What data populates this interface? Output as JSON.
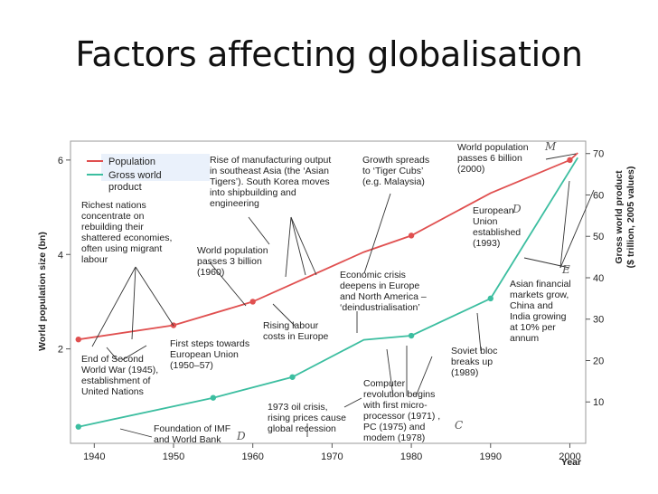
{
  "slide": {
    "title": "Factors affecting globalisation"
  },
  "chart_data": {
    "type": "line",
    "title": "",
    "xlabel": "Year",
    "ylabel_left": "World population size (bn)",
    "ylabel_right": "Gross world product ($ trillion, 2005 values)",
    "xlim": [
      1937,
      2002
    ],
    "ylim_left": [
      0,
      6.4
    ],
    "ylim_right": [
      0,
      73
    ],
    "x_ticks": [
      1940,
      1950,
      1960,
      1970,
      1980,
      1990,
      2000
    ],
    "y_ticks_left": [
      2,
      4,
      6
    ],
    "y_ticks_right": [
      10,
      20,
      30,
      40,
      50,
      60,
      70
    ],
    "series": [
      {
        "name": "Population",
        "axis": "left",
        "color": "#e05050",
        "x": [
          1938,
          1950,
          1960,
          1974,
          1980,
          1990,
          2000,
          2001
        ],
        "y": [
          2.2,
          2.5,
          3.0,
          4.05,
          4.4,
          5.3,
          6.0,
          6.15
        ]
      },
      {
        "name": "Gross world product",
        "axis": "right",
        "color": "#3cbea0",
        "x": [
          1938,
          1955,
          1965,
          1974,
          1980,
          1990,
          2001
        ],
        "y": [
          4,
          11,
          16,
          25,
          26,
          35,
          69
        ]
      }
    ],
    "markers": [
      {
        "series": 0,
        "x": 1938,
        "y": 2.2
      },
      {
        "series": 0,
        "x": 1950,
        "y": 2.5
      },
      {
        "series": 0,
        "x": 1960,
        "y": 3.0
      },
      {
        "series": 0,
        "x": 1980,
        "y": 4.4
      },
      {
        "series": 0,
        "x": 2000,
        "y": 6.0
      },
      {
        "series": 1,
        "x": 1938,
        "y": 4
      },
      {
        "series": 1,
        "x": 1955,
        "y": 11
      },
      {
        "series": 1,
        "x": 1965,
        "y": 16
      },
      {
        "series": 1,
        "x": 1980,
        "y": 26
      },
      {
        "series": 1,
        "x": 1990,
        "y": 35
      }
    ],
    "legend": {
      "placement": "top-left",
      "entries": [
        "Population",
        "Gross world product"
      ]
    },
    "grid": false,
    "annotations": [
      {
        "name": "richest-nations",
        "lines": [
          "Richest nations",
          "concentrate on",
          "rebuilding their",
          "shattered economies,",
          "often using migrant",
          "labour"
        ]
      },
      {
        "name": "rise-of-manufacturing",
        "lines": [
          "Rise of manufacturing output",
          "in southeast Asia (the ‘Asian",
          "Tigers’). South Korea moves",
          "into shipbuilding and",
          "engineering"
        ]
      },
      {
        "name": "growth-spreads",
        "lines": [
          "Growth spreads",
          "to ‘Tiger Cubs’",
          "(e.g. Malaysia)"
        ]
      },
      {
        "name": "population-6-billion",
        "lines": [
          "World population",
          "passes 6 billion",
          "(2000)"
        ]
      },
      {
        "name": "european-union",
        "lines": [
          "European",
          "Union",
          "established",
          "(1993)"
        ]
      },
      {
        "name": "population-3-billion",
        "lines": [
          "World population",
          "passes 3 billion",
          "(1960)"
        ]
      },
      {
        "name": "economic-crisis",
        "lines": [
          "Economic crisis",
          "deepens in Europe",
          "and North America –",
          "‘deindustrialisation’"
        ]
      },
      {
        "name": "asian-markets",
        "lines": [
          "Asian financial",
          "markets grow,",
          "China and",
          "India growing",
          "at 10% per",
          "annum"
        ]
      },
      {
        "name": "rising-labour-costs",
        "lines": [
          "Rising labour",
          "costs in Europe"
        ]
      },
      {
        "name": "first-steps-eu",
        "lines": [
          "First steps towards",
          "European Union",
          "(1950–57)"
        ]
      },
      {
        "name": "end-of-ww2",
        "lines": [
          "End of Second",
          "World War (1945),",
          "establishment of",
          "United Nations"
        ]
      },
      {
        "name": "soviet-bloc",
        "lines": [
          "Soviet bloc",
          "breaks up",
          "(1989)"
        ]
      },
      {
        "name": "computer-revolution",
        "lines": [
          "Computer",
          "revolution begins",
          "with first micro-",
          "processor (1971) ,",
          "PC (1975) and",
          "modem (1978)"
        ]
      },
      {
        "name": "oil-crisis",
        "lines": [
          "1973 oil crisis,",
          "rising prices cause",
          "global recession"
        ]
      },
      {
        "name": "imf-world-bank",
        "lines": [
          "Foundation of IMF",
          "and World Bank"
        ]
      }
    ],
    "handwritten_marks": [
      "M",
      "D",
      "E",
      "D",
      "C"
    ]
  }
}
